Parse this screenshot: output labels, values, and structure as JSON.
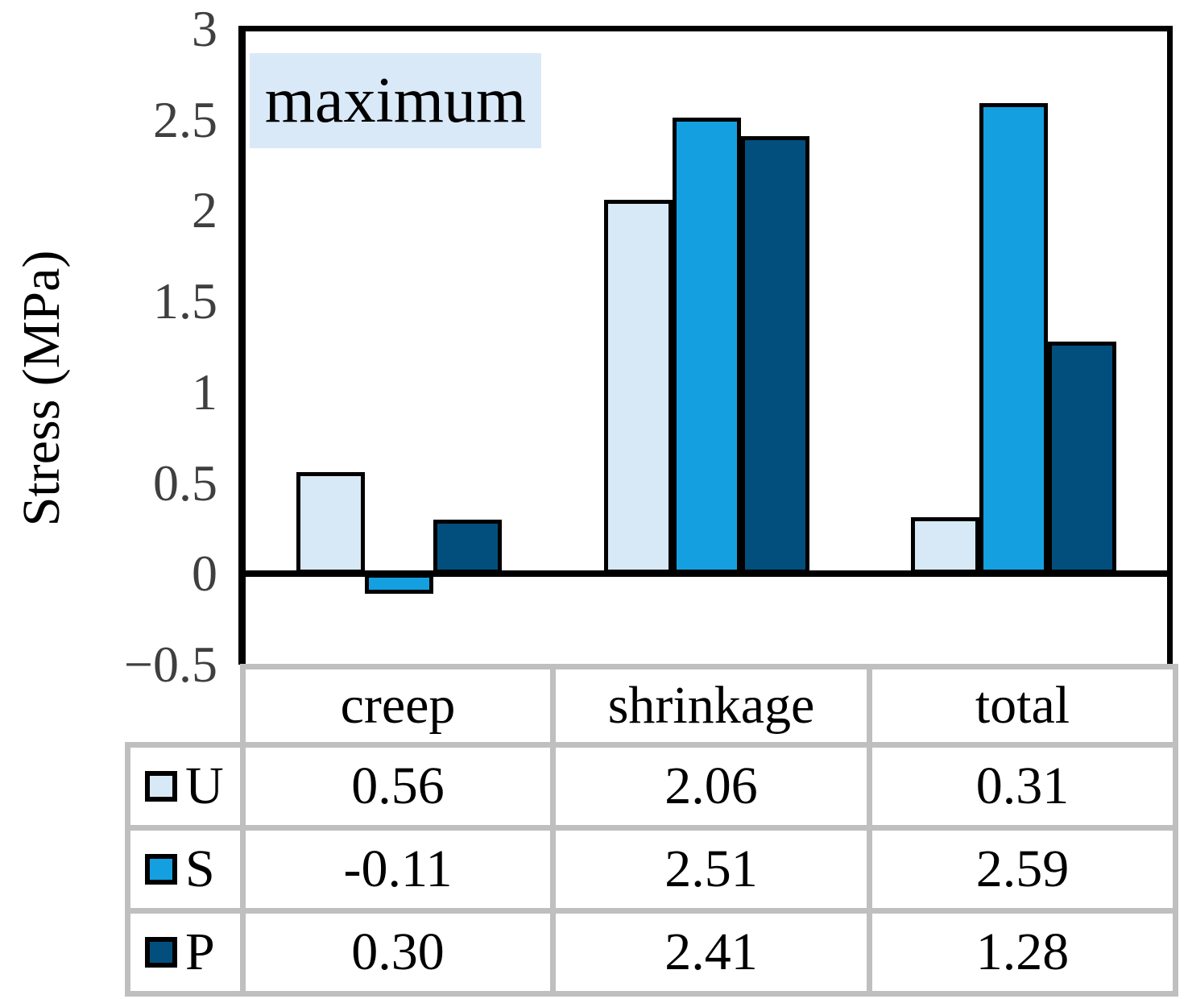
{
  "chart_data": {
    "type": "bar",
    "annotation": "maximum",
    "annotation_bg": "#d9e9f7",
    "ylabel": "Stress (MPa)",
    "categories": [
      "creep",
      "shrinkage",
      "total"
    ],
    "series": [
      {
        "name": "U",
        "color": "#d7e9f6",
        "values": [
          0.56,
          2.06,
          0.31
        ]
      },
      {
        "name": "S",
        "color": "#14a0e0",
        "values": [
          -0.11,
          2.51,
          2.59
        ]
      },
      {
        "name": "P",
        "color": "#024f7e",
        "values": [
          0.3,
          2.41,
          1.28
        ]
      }
    ],
    "ylim": [
      -0.5,
      3
    ],
    "ytick_labels": [
      "3",
      "2.5",
      "2",
      "1.5",
      "1",
      "0.5",
      "0",
      "−0.5"
    ],
    "grid": false,
    "legend_position": "table-left",
    "axis_color": "#000000",
    "tick_label_color": "#3f3f3f"
  },
  "data_table": {
    "border_color": "#bfbfbf",
    "columns": [
      "creep",
      "shrinkage",
      "total"
    ],
    "rows": [
      {
        "label": "U",
        "values": [
          "0.56",
          "2.06",
          "0.31"
        ]
      },
      {
        "label": "S",
        "values": [
          "-0.11",
          "2.51",
          "2.59"
        ]
      },
      {
        "label": "P",
        "values": [
          "0.30",
          "2.41",
          "1.28"
        ]
      }
    ]
  }
}
